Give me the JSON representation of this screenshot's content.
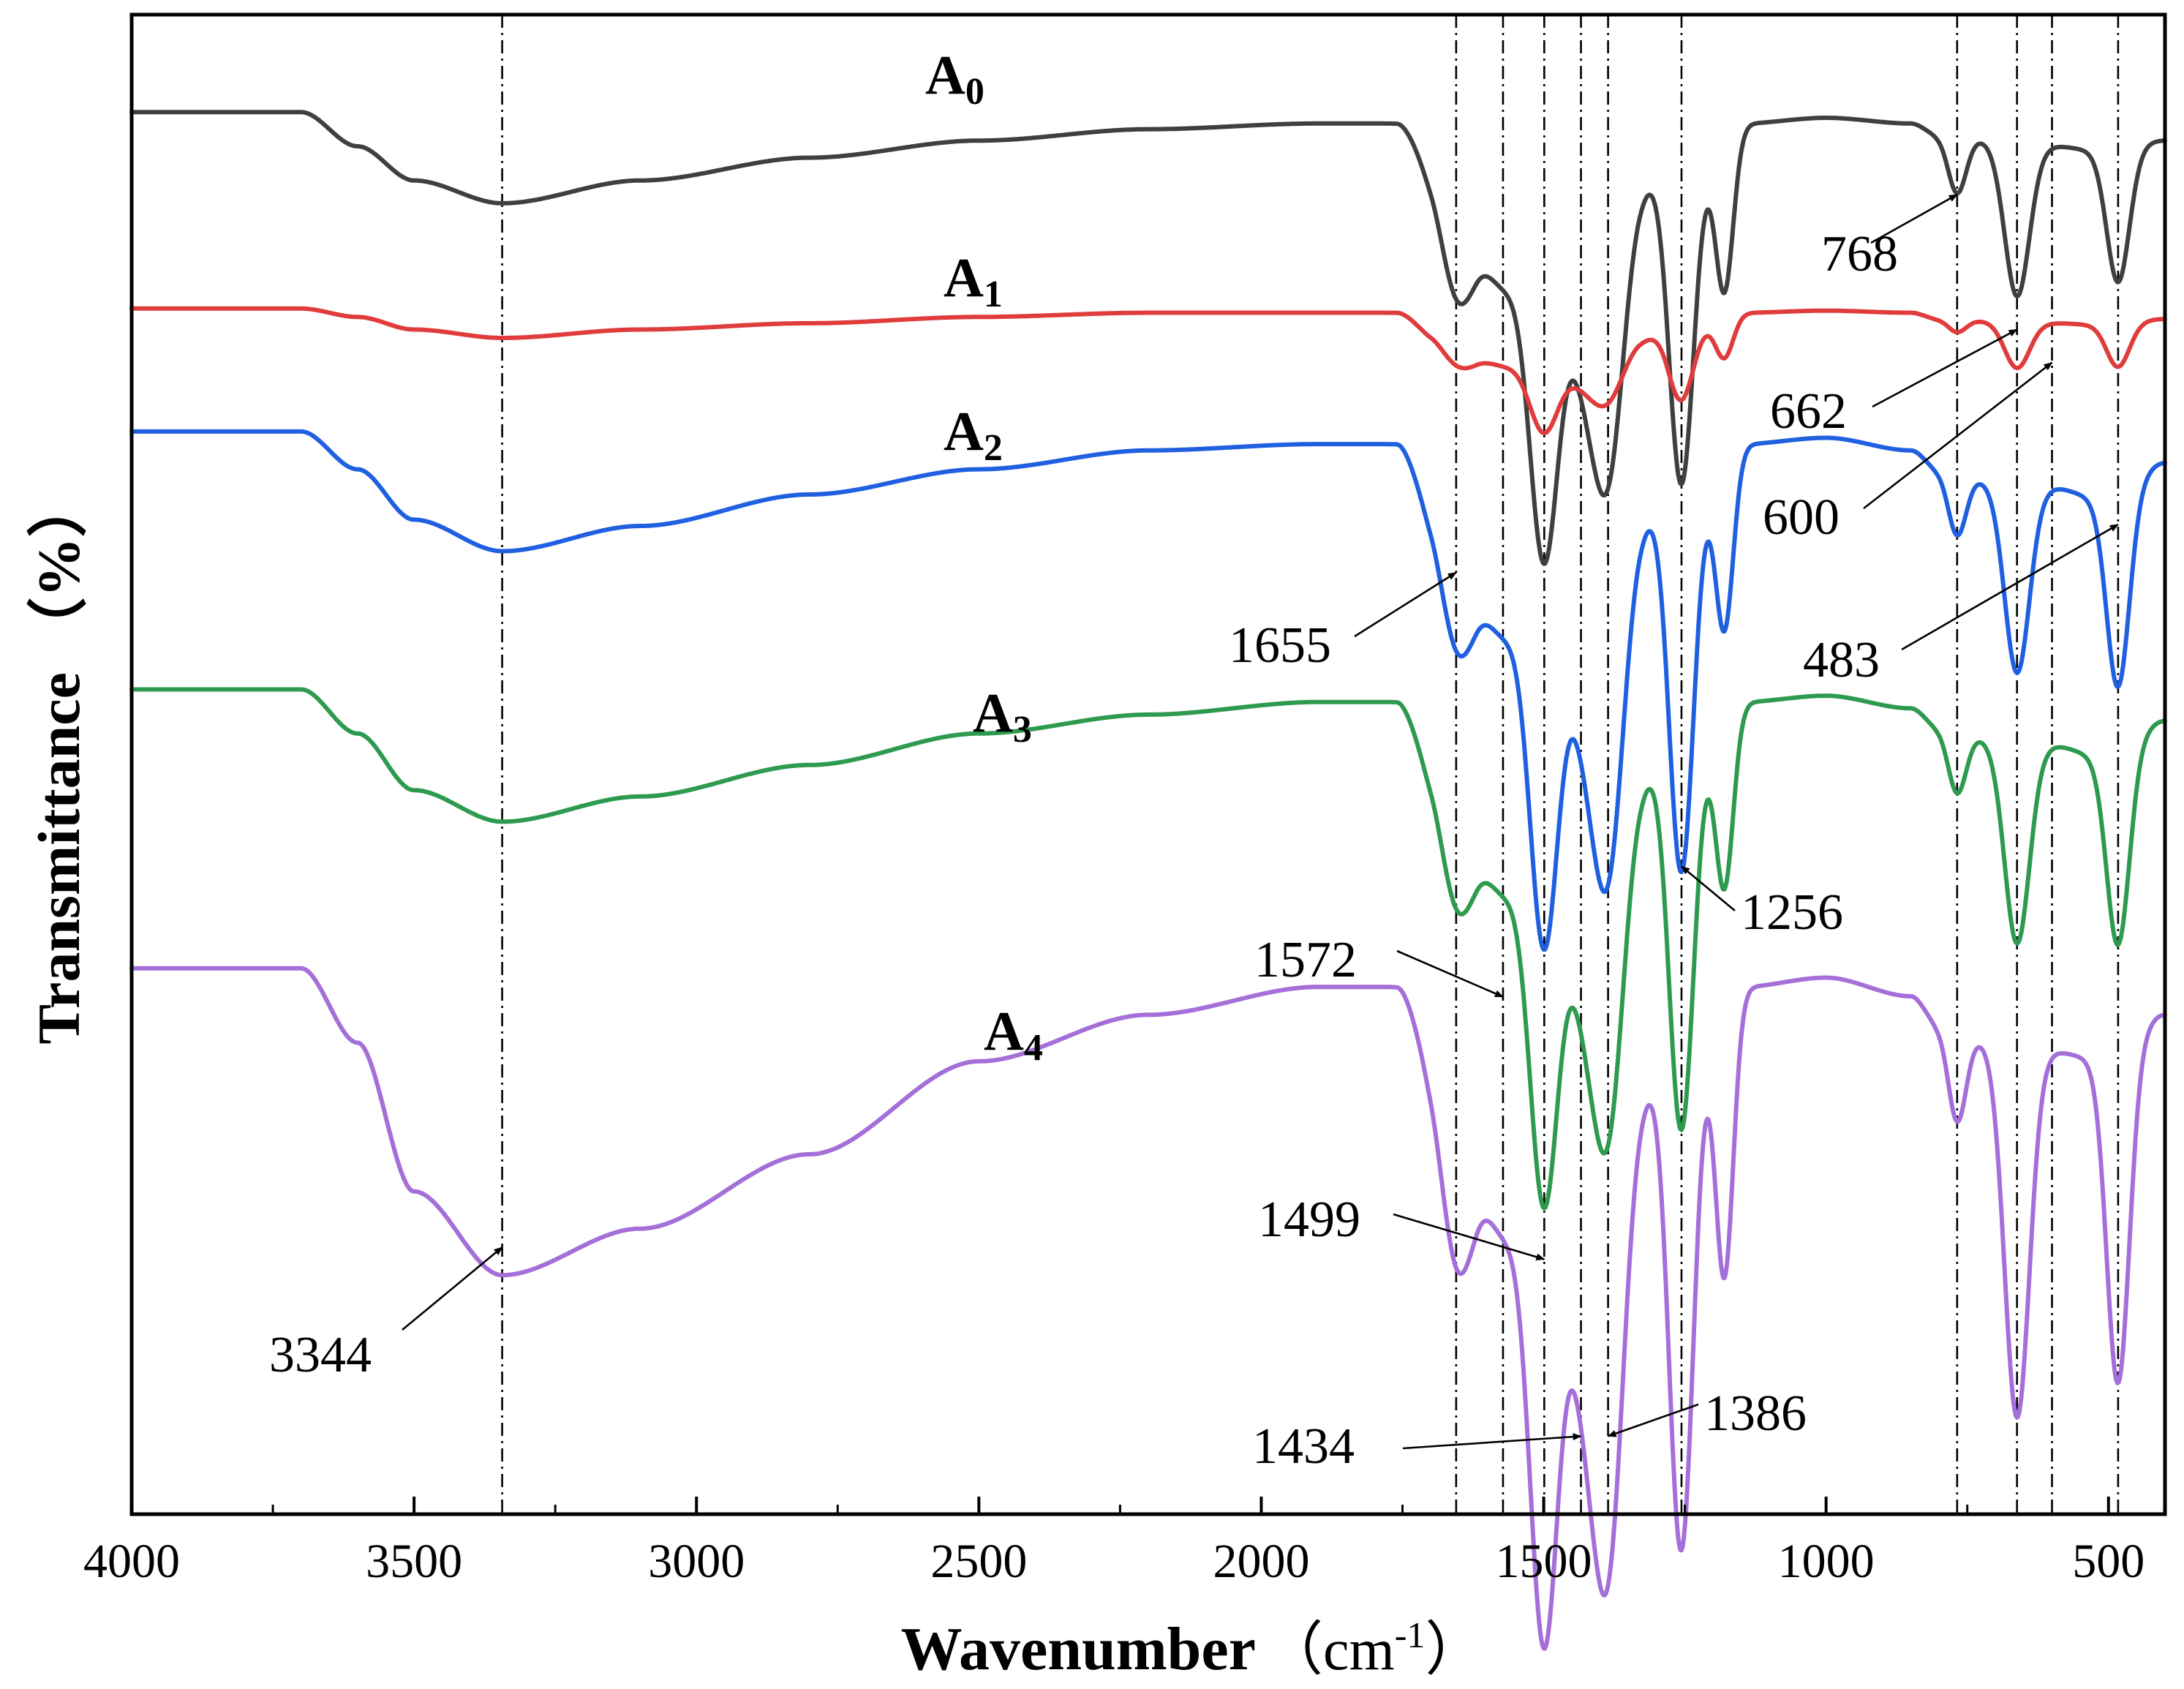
{
  "chart_data": {
    "type": "line",
    "xlabel": "Wavenumber",
    "xlabel_unit": "（cm",
    "xlabel_unit_sup": "-1",
    "xlabel_unit_end": "）",
    "ylabel": "Transmittance （%）",
    "xlim": [
      4000,
      400
    ],
    "x_ticks": [
      4000,
      3500,
      3000,
      2500,
      2000,
      1500,
      1000,
      500
    ],
    "y_ticks": [],
    "reference_lines": [
      3344,
      1655,
      1572,
      1499,
      1434,
      1386,
      1256,
      768,
      662,
      600,
      483
    ],
    "band_positions": [
      3344,
      1655,
      1572,
      1499,
      1434,
      1386,
      1256,
      1180,
      768,
      662,
      483
    ],
    "series": [
      {
        "name": "A",
        "sub": "0",
        "color": "#3f3f3f",
        "offset": 0.935,
        "scale": 0.38,
        "depths": [
          0.23,
          0.2,
          0.14,
          0.6,
          0.2,
          0.47,
          0.58,
          0.28,
          0.1,
          0.27,
          0.23,
          0.16
        ],
        "bg": [
          [
            4000,
            0.0
          ],
          [
            3700,
            0.0
          ],
          [
            3600,
            0.06
          ],
          [
            3500,
            0.12
          ],
          [
            3344,
            0.16
          ],
          [
            3100,
            0.12
          ],
          [
            2800,
            0.08
          ],
          [
            2500,
            0.05
          ],
          [
            2200,
            0.03
          ],
          [
            1900,
            0.02
          ],
          [
            1760,
            0.02
          ],
          [
            1700,
            0.08
          ],
          [
            1620,
            0.15
          ],
          [
            1500,
            0.17
          ],
          [
            1420,
            0.17
          ],
          [
            1330,
            0.12
          ],
          [
            1280,
            0.08
          ],
          [
            1220,
            0.06
          ],
          [
            1150,
            0.02
          ],
          [
            1000,
            0.01
          ],
          [
            850,
            0.02
          ],
          [
            800,
            0.04
          ],
          [
            700,
            0.05
          ],
          [
            600,
            0.06
          ],
          [
            500,
            0.07
          ],
          [
            400,
            0.05
          ]
        ]
      },
      {
        "name": "A",
        "sub": "1",
        "color": "#e03c3c",
        "offset": 0.804,
        "scale": 0.14,
        "depths": [
          0.15,
          0.12,
          0.08,
          0.38,
          0.12,
          0.25,
          0.35,
          0.2,
          0.06,
          0.22,
          0.2,
          0.15
        ],
        "bg": [
          [
            4000,
            0.0
          ],
          [
            3700,
            0.0
          ],
          [
            3600,
            0.04
          ],
          [
            3500,
            0.1
          ],
          [
            3344,
            0.14
          ],
          [
            3100,
            0.1
          ],
          [
            2800,
            0.07
          ],
          [
            2500,
            0.04
          ],
          [
            2200,
            0.02
          ],
          [
            1900,
            0.02
          ],
          [
            1760,
            0.02
          ],
          [
            1700,
            0.1
          ],
          [
            1620,
            0.18
          ],
          [
            1500,
            0.2
          ],
          [
            1420,
            0.2
          ],
          [
            1330,
            0.14
          ],
          [
            1280,
            0.1
          ],
          [
            1220,
            0.06
          ],
          [
            1150,
            0.02
          ],
          [
            1000,
            0.01
          ],
          [
            850,
            0.02
          ],
          [
            800,
            0.05
          ],
          [
            700,
            0.06
          ],
          [
            600,
            0.07
          ],
          [
            500,
            0.08
          ],
          [
            400,
            0.05
          ]
        ]
      },
      {
        "name": "A",
        "sub": "2",
        "color": "#1f5fe0",
        "offset": 0.722,
        "scale": 0.42,
        "depths": [
          0.25,
          0.2,
          0.14,
          0.62,
          0.2,
          0.52,
          0.62,
          0.28,
          0.1,
          0.3,
          0.3,
          0.25
        ],
        "bg": [
          [
            4000,
            0.0
          ],
          [
            3700,
            0.0
          ],
          [
            3600,
            0.06
          ],
          [
            3500,
            0.14
          ],
          [
            3344,
            0.19
          ],
          [
            3100,
            0.15
          ],
          [
            2800,
            0.1
          ],
          [
            2500,
            0.06
          ],
          [
            2200,
            0.03
          ],
          [
            1900,
            0.02
          ],
          [
            1760,
            0.02
          ],
          [
            1700,
            0.1
          ],
          [
            1620,
            0.17
          ],
          [
            1500,
            0.18
          ],
          [
            1420,
            0.18
          ],
          [
            1330,
            0.13
          ],
          [
            1280,
            0.09
          ],
          [
            1220,
            0.06
          ],
          [
            1150,
            0.02
          ],
          [
            1000,
            0.01
          ],
          [
            850,
            0.03
          ],
          [
            800,
            0.06
          ],
          [
            700,
            0.08
          ],
          [
            600,
            0.09
          ],
          [
            500,
            0.11
          ],
          [
            400,
            0.05
          ]
        ]
      },
      {
        "name": "A",
        "sub": "3",
        "color": "#2e9a50",
        "offset": 0.55,
        "scale": 0.42,
        "depths": [
          0.26,
          0.2,
          0.14,
          0.62,
          0.22,
          0.52,
          0.62,
          0.28,
          0.1,
          0.32,
          0.3,
          0.22
        ],
        "bg": [
          [
            4000,
            0.0
          ],
          [
            3700,
            0.0
          ],
          [
            3600,
            0.07
          ],
          [
            3500,
            0.16
          ],
          [
            3344,
            0.21
          ],
          [
            3100,
            0.17
          ],
          [
            2800,
            0.12
          ],
          [
            2500,
            0.07
          ],
          [
            2200,
            0.04
          ],
          [
            1900,
            0.02
          ],
          [
            1760,
            0.02
          ],
          [
            1700,
            0.1
          ],
          [
            1620,
            0.17
          ],
          [
            1500,
            0.18
          ],
          [
            1420,
            0.18
          ],
          [
            1330,
            0.13
          ],
          [
            1280,
            0.09
          ],
          [
            1220,
            0.06
          ],
          [
            1150,
            0.02
          ],
          [
            1000,
            0.01
          ],
          [
            850,
            0.03
          ],
          [
            800,
            0.06
          ],
          [
            700,
            0.08
          ],
          [
            600,
            0.09
          ],
          [
            500,
            0.11
          ],
          [
            400,
            0.05
          ]
        ]
      },
      {
        "name": "A",
        "sub": "4",
        "color": "#a46fd8",
        "offset": 0.364,
        "scale": 0.62,
        "depths": [
          0.3,
          0.2,
          0.13,
          0.55,
          0.2,
          0.48,
          0.55,
          0.3,
          0.1,
          0.4,
          0.35,
          0.25
        ],
        "bg": [
          [
            4000,
            0.0
          ],
          [
            3700,
            0.0
          ],
          [
            3600,
            0.08
          ],
          [
            3500,
            0.24
          ],
          [
            3344,
            0.33
          ],
          [
            3100,
            0.28
          ],
          [
            2800,
            0.2
          ],
          [
            2500,
            0.1
          ],
          [
            2200,
            0.05
          ],
          [
            1900,
            0.02
          ],
          [
            1760,
            0.02
          ],
          [
            1700,
            0.08
          ],
          [
            1620,
            0.14
          ],
          [
            1500,
            0.16
          ],
          [
            1420,
            0.16
          ],
          [
            1330,
            0.12
          ],
          [
            1280,
            0.09
          ],
          [
            1220,
            0.05
          ],
          [
            1150,
            0.02
          ],
          [
            1000,
            0.01
          ],
          [
            850,
            0.03
          ],
          [
            800,
            0.06
          ],
          [
            700,
            0.08
          ],
          [
            600,
            0.09
          ],
          [
            500,
            0.1
          ],
          [
            400,
            0.05
          ]
        ]
      }
    ],
    "annotations": [
      {
        "text": "768",
        "target": [
          768,
          0.88
        ]
      },
      {
        "text": "662",
        "target": [
          662,
          0.79
        ]
      },
      {
        "text": "600",
        "target": [
          600,
          0.768
        ]
      },
      {
        "text": "1655",
        "target": [
          1655,
          0.628
        ]
      },
      {
        "text": "483",
        "target": [
          483,
          0.66
        ]
      },
      {
        "text": "1256",
        "target": [
          1256,
          0.432
        ]
      },
      {
        "text": "1572",
        "target": [
          1572,
          0.345
        ]
      },
      {
        "text": "1499",
        "target": [
          1499,
          0.17
        ]
      },
      {
        "text": "3344",
        "target": [
          3344,
          0.178
        ]
      },
      {
        "text": "1434",
        "target": [
          1434,
          0.052
        ]
      },
      {
        "text": "1386",
        "target": [
          1386,
          0.052
        ]
      }
    ]
  }
}
